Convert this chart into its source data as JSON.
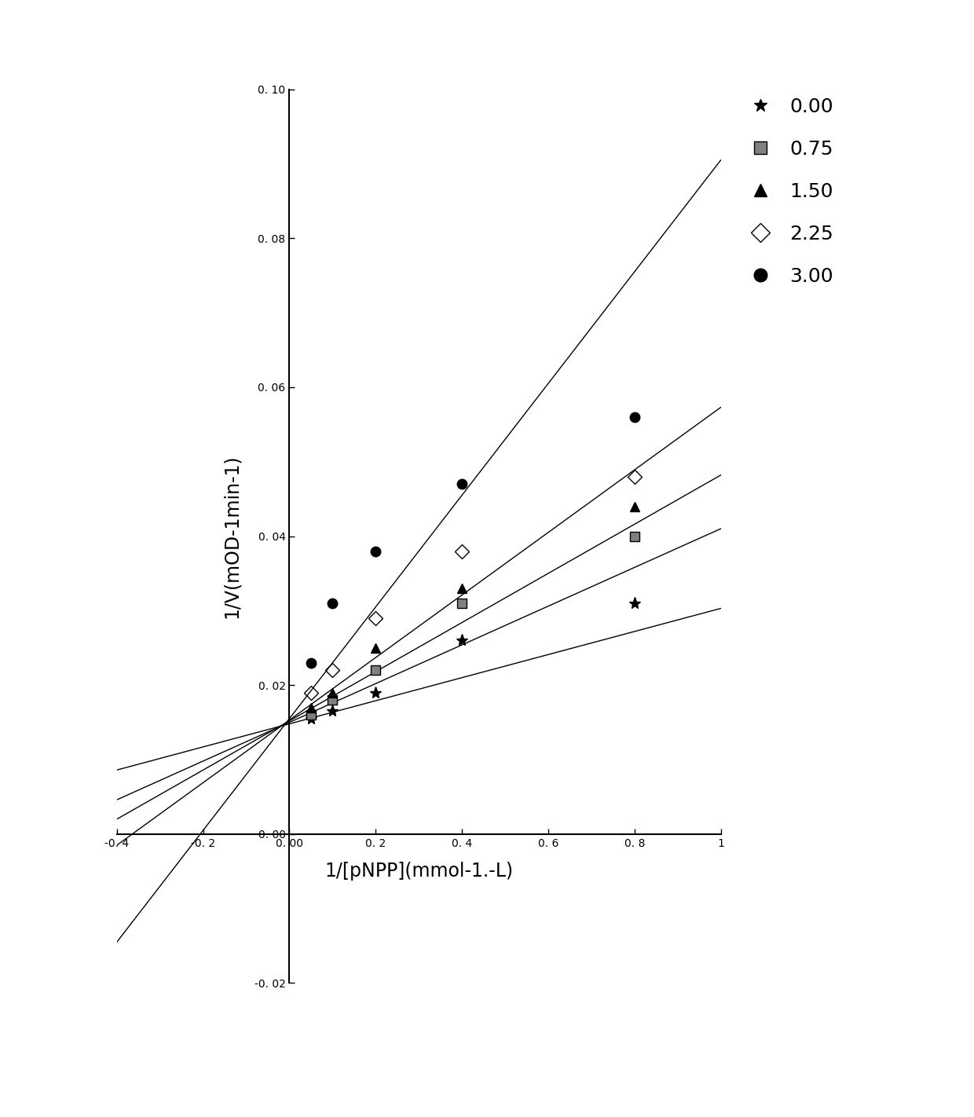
{
  "title": "",
  "xlabel": "1/[pNPP](mmol-1.-L)",
  "ylabel": "1/V(mOD-1min-1)",
  "xlim": [
    -0.4,
    1.0
  ],
  "ylim": [
    -0.02,
    0.1
  ],
  "xticks": [
    -0.4,
    -0.2,
    0.0,
    0.2,
    0.4,
    0.6,
    0.8,
    1.0
  ],
  "yticks": [
    -0.02,
    0.0,
    0.02,
    0.04,
    0.06,
    0.08,
    0.1
  ],
  "xtick_labels": [
    "-0. 4",
    "-0. 2",
    "0. 00",
    "0. 2",
    "0. 4",
    "0. 6",
    "0. 8",
    "1"
  ],
  "ytick_labels": [
    "-0. 02",
    "0. 00",
    "0. 02",
    "0. 04",
    "0. 06",
    "0. 08",
    "0. 10"
  ],
  "series": [
    {
      "label": "0.00",
      "marker": "*",
      "color": "black",
      "markersize": 11,
      "x_data": [
        0.05,
        0.1,
        0.2,
        0.4,
        0.8
      ],
      "y_data": [
        0.0155,
        0.0165,
        0.019,
        0.026,
        0.031
      ],
      "line_slope": 0.0155,
      "line_intercept": 0.0148
    },
    {
      "label": "0.75",
      "marker": "s",
      "color": "black",
      "markersize": 9,
      "x_data": [
        0.05,
        0.1,
        0.2,
        0.4,
        0.8
      ],
      "y_data": [
        0.016,
        0.018,
        0.022,
        0.031,
        0.04
      ],
      "line_slope": 0.026,
      "line_intercept": 0.015
    },
    {
      "label": "1.50",
      "marker": "^",
      "color": "black",
      "markersize": 9,
      "x_data": [
        0.05,
        0.1,
        0.2,
        0.4,
        0.8
      ],
      "y_data": [
        0.017,
        0.019,
        0.025,
        0.033,
        0.044
      ],
      "line_slope": 0.033,
      "line_intercept": 0.0152
    },
    {
      "label": "2.25",
      "marker": "D",
      "color": "black",
      "markersize": 9,
      "x_data": [
        0.05,
        0.1,
        0.2,
        0.4,
        0.8
      ],
      "y_data": [
        0.019,
        0.022,
        0.029,
        0.038,
        0.048
      ],
      "line_slope": 0.042,
      "line_intercept": 0.0153
    },
    {
      "label": "3.00",
      "marker": "o",
      "color": "black",
      "markersize": 9,
      "x_data": [
        0.05,
        0.1,
        0.2,
        0.4,
        0.8
      ],
      "y_data": [
        0.023,
        0.031,
        0.038,
        0.047,
        0.056
      ],
      "line_slope": 0.075,
      "line_intercept": 0.0155
    }
  ],
  "background_color": "#ffffff",
  "legend_markers": [
    "*",
    "s",
    "^",
    "D",
    "o"
  ],
  "legend_labels": [
    "0.00",
    "0.75",
    "1.50",
    "2.25",
    "3.00"
  ]
}
